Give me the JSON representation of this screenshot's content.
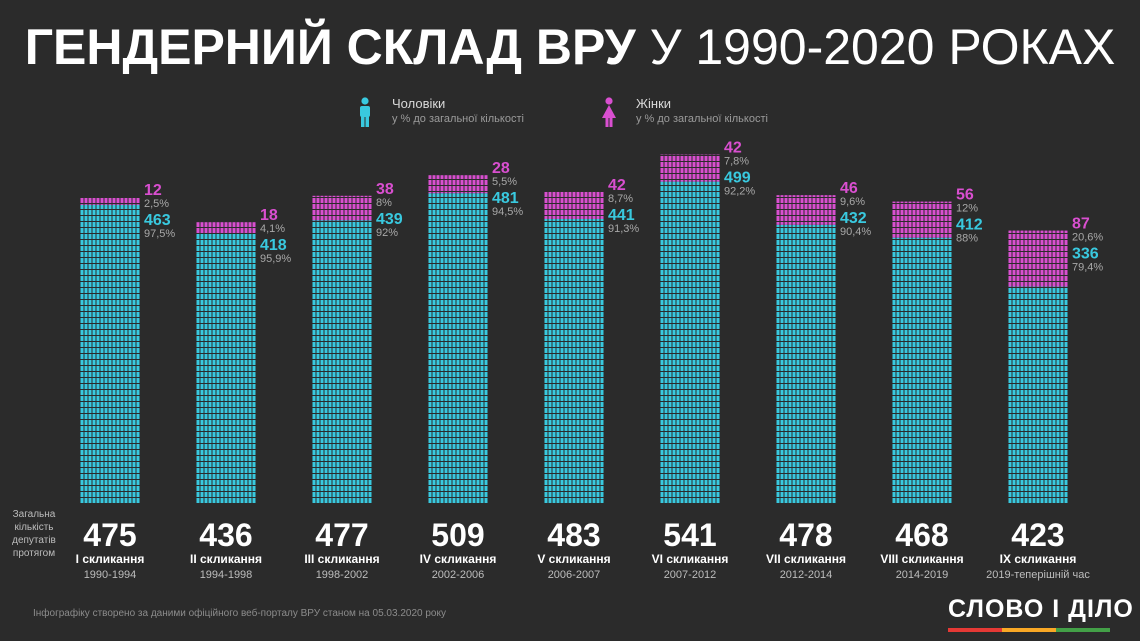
{
  "title": {
    "bold": "ГЕНДЕРНИЙ СКЛАД ВРУ",
    "rest": "У 1990-2020 РОКАХ"
  },
  "legend": {
    "men": {
      "label": "Чоловіки",
      "sub": "у % до загальної кількості",
      "color": "#39c9df",
      "icon": "man-icon"
    },
    "women": {
      "label": "Жінки",
      "sub": "у % до загальної кількості",
      "color": "#d94fd0",
      "icon": "woman-icon"
    }
  },
  "row_label": "Загальна кількість депутатів протягом",
  "footnote": "Інфографіку створено за даними офіційного веб-порталу ВРУ станом на 05.03.2020 року",
  "logo": {
    "text": "СЛОВО І ДІЛО",
    "stripe_colors": [
      "#e53935",
      "#f9a825",
      "#43a047"
    ]
  },
  "chart_data": {
    "type": "bar",
    "stacked": true,
    "ylim": [
      0,
      545
    ],
    "categories": [
      "I скликання",
      "II скликання",
      "III скликання",
      "IV скликання",
      "V скликання",
      "VI скликання",
      "VII скликання",
      "VIII скликання",
      "IX скликання"
    ],
    "periods": [
      "1990-1994",
      "1994-1998",
      "1998-2002",
      "2002-2006",
      "2006-2007",
      "2007-2012",
      "2012-2014",
      "2014-2019",
      "2019-теперішній час"
    ],
    "totals": [
      475,
      436,
      477,
      509,
      483,
      541,
      478,
      468,
      423
    ],
    "series": [
      {
        "name": "Чоловіки",
        "values": [
          463,
          418,
          439,
          481,
          441,
          499,
          432,
          412,
          336
        ],
        "labels": [
          "463",
          "418",
          "439",
          "481",
          "441",
          "499",
          "432",
          "412",
          "336"
        ],
        "percent_labels": [
          "97,5%",
          "95,9%",
          "92%",
          "94,5%",
          "91,3%",
          "92,2%",
          "90,4%",
          "88%",
          "79,4%"
        ]
      },
      {
        "name": "Жінки",
        "values": [
          12,
          18,
          38,
          28,
          42,
          42,
          46,
          56,
          87
        ],
        "labels": [
          "12",
          "18",
          "38",
          "28",
          "42",
          "42",
          "46",
          "56",
          "87"
        ],
        "percent_labels": [
          "2,5%",
          "4,1%",
          "8%",
          "5,5%",
          "8,7%",
          "7,8%",
          "9,6%",
          "12%",
          "20,6%"
        ]
      }
    ]
  }
}
